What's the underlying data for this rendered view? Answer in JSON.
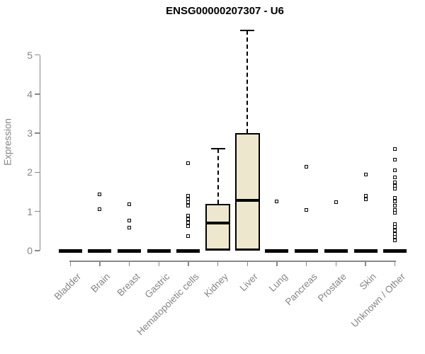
{
  "colors": {
    "background": "#ffffff",
    "title": "#000000",
    "axis": "#888888",
    "labels": "#858585",
    "box_fill": "#EDE8CD",
    "box_border": "#000000"
  },
  "chart_data": {
    "type": "boxplot",
    "title": "ENSG00000207307 - U6",
    "ylabel": "Expression",
    "xlabel": "",
    "ylim": [
      0,
      5.7
    ],
    "yticks": [
      0,
      1,
      2,
      3,
      4,
      5
    ],
    "grid": false,
    "legend": false,
    "categories": [
      "Bladder",
      "Brain",
      "Breast",
      "Gastric",
      "Hematopoietic cells",
      "Kidney",
      "Liver",
      "Lung",
      "Pancreas",
      "Prostate",
      "Skin",
      "Unknown / Other"
    ],
    "boxes": [
      {
        "category": "Bladder",
        "q1": 0,
        "median": 0,
        "q3": 0,
        "whisker_low": 0,
        "whisker_high": 0,
        "outliers": []
      },
      {
        "category": "Brain",
        "q1": 0,
        "median": 0,
        "q3": 0,
        "whisker_low": 0,
        "whisker_high": 0,
        "outliers": [
          1.43,
          1.05
        ]
      },
      {
        "category": "Breast",
        "q1": 0,
        "median": 0,
        "q3": 0,
        "whisker_low": 0,
        "whisker_high": 0,
        "outliers": [
          1.19,
          0.77,
          0.58
        ]
      },
      {
        "category": "Gastric",
        "q1": 0,
        "median": 0,
        "q3": 0,
        "whisker_low": 0,
        "whisker_high": 0,
        "outliers": []
      },
      {
        "category": "Hematopoietic cells",
        "q1": 0,
        "median": 0,
        "q3": 0,
        "whisker_low": 0,
        "whisker_high": 0,
        "outliers": [
          2.24,
          1.41,
          1.32,
          1.23,
          1.14,
          0.89,
          0.8,
          0.71,
          0.63,
          0.37
        ]
      },
      {
        "category": "Kidney",
        "q1": 0,
        "median": 0.71,
        "q3": 1.2,
        "whisker_low": 0,
        "whisker_high": 2.61,
        "outliers": []
      },
      {
        "category": "Liver",
        "q1": 0,
        "median": 1.29,
        "q3": 3.0,
        "whisker_low": 0,
        "whisker_high": 5.63,
        "outliers": []
      },
      {
        "category": "Lung",
        "q1": 0,
        "median": 0,
        "q3": 0,
        "whisker_low": 0,
        "whisker_high": 0,
        "outliers": [
          1.25
        ]
      },
      {
        "category": "Pancreas",
        "q1": 0,
        "median": 0,
        "q3": 0,
        "whisker_low": 0,
        "whisker_high": 0,
        "outliers": [
          2.14,
          1.04
        ]
      },
      {
        "category": "Prostate",
        "q1": 0,
        "median": 0,
        "q3": 0,
        "whisker_low": 0,
        "whisker_high": 0,
        "outliers": [
          1.23
        ]
      },
      {
        "category": "Skin",
        "q1": 0,
        "median": 0,
        "q3": 0,
        "whisker_low": 0,
        "whisker_high": 0,
        "outliers": [
          1.95,
          1.4,
          1.31
        ]
      },
      {
        "category": "Unknown / Other",
        "q1": 0,
        "median": 0,
        "q3": 0,
        "whisker_low": 0,
        "whisker_high": 0,
        "outliers": [
          2.6,
          2.33,
          2.06,
          1.88,
          1.75,
          1.66,
          1.59,
          1.34,
          1.25,
          1.15,
          1.04,
          0.96,
          0.68,
          0.6,
          0.52,
          0.43,
          0.35,
          0.27
        ]
      }
    ]
  }
}
